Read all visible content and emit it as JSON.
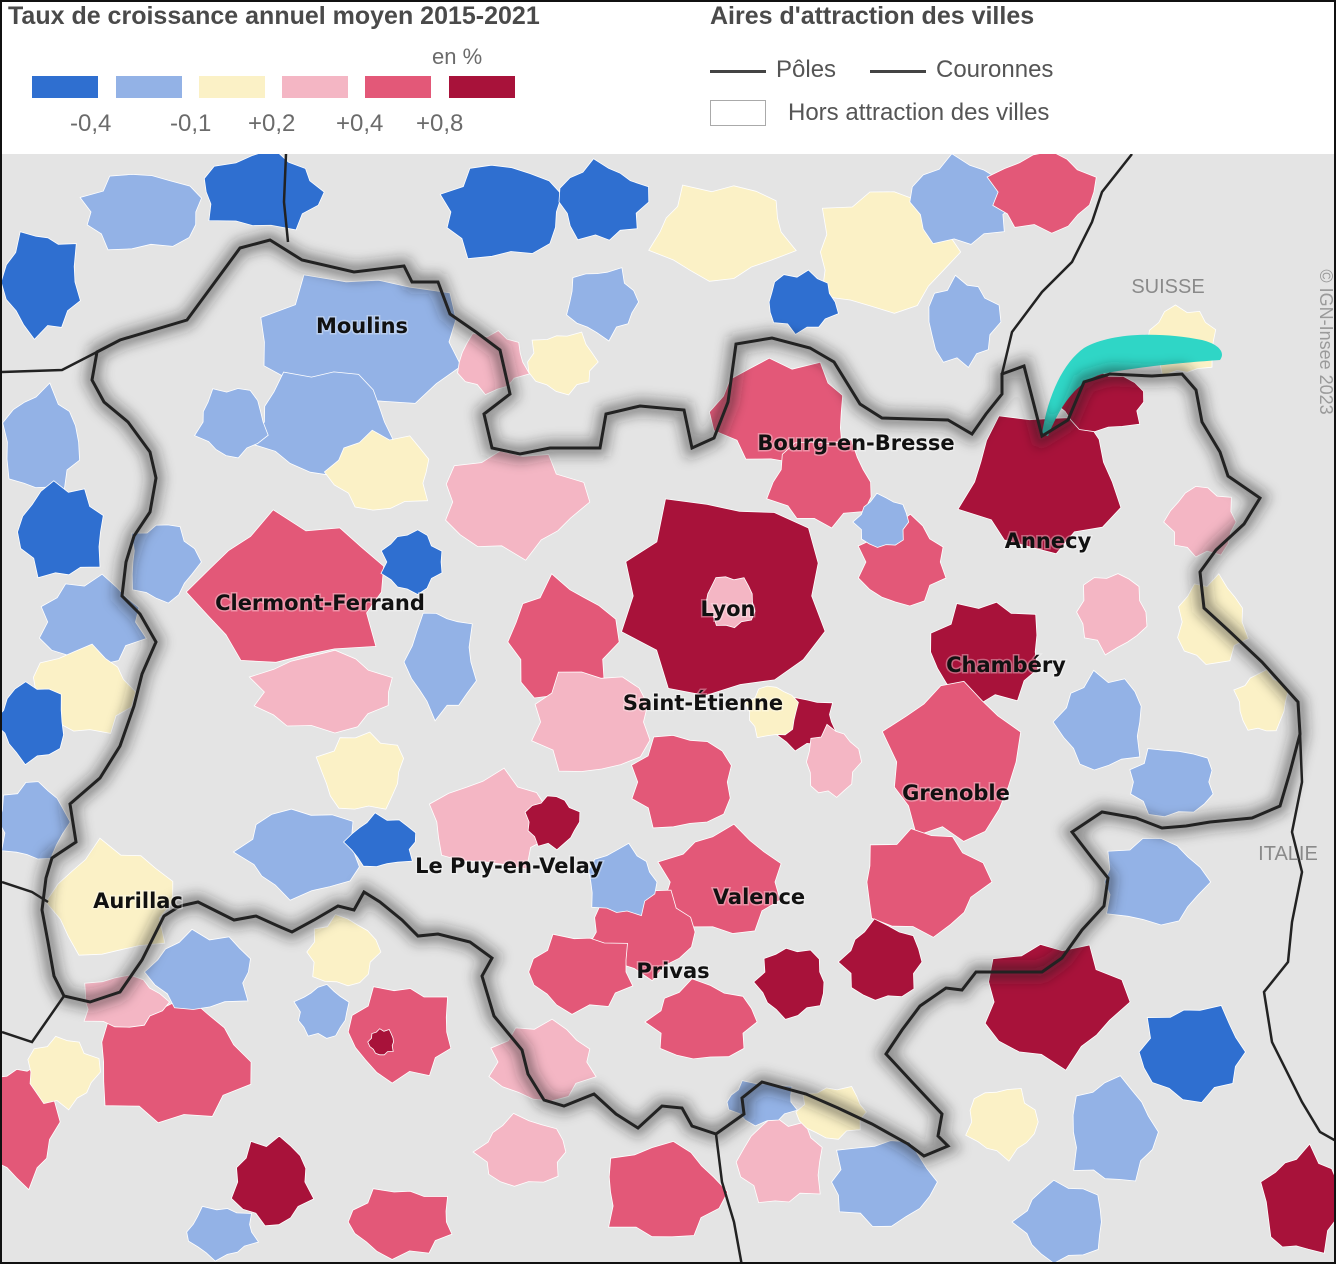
{
  "legend": {
    "growth_title": "Taux de croissance annuel moyen 2015-2021",
    "unit": "en %",
    "classes": [
      {
        "color": "#2f6fd0"
      },
      {
        "color": "#93b2e6"
      },
      {
        "color": "#fbf1c6"
      },
      {
        "color": "#f4b6c4"
      },
      {
        "color": "#e35878"
      },
      {
        "color": "#a8123a"
      }
    ],
    "breaks": [
      "-0,4",
      "-0,1",
      "+0,2",
      "+0,4",
      "+0,8"
    ],
    "areas_title": "Aires d'attraction des villes",
    "poles_label": "Pôles",
    "couronnes_label": "Couronnes",
    "hors_label": "Hors attraction des villes"
  },
  "map": {
    "background_color": "#e4e4e4",
    "lake_color": "#2fd6c6",
    "cities": {
      "moulins": "Moulins",
      "bourg": "Bourg-en-Bresse",
      "annecy": "Annecy",
      "clermont": "Clermont-Ferrand",
      "lyon": "Lyon",
      "chambery": "Chambéry",
      "saint_etienne": "Saint-Étienne",
      "grenoble": "Grenoble",
      "le_puy": "Le Puy-en-Velay",
      "valence": "Valence",
      "aurillac": "Aurillac",
      "privas": "Privas"
    },
    "countries": {
      "suisse": "SUISSE",
      "italie": "ITALIE"
    },
    "credit": "© IGN-Insee 2023"
  }
}
